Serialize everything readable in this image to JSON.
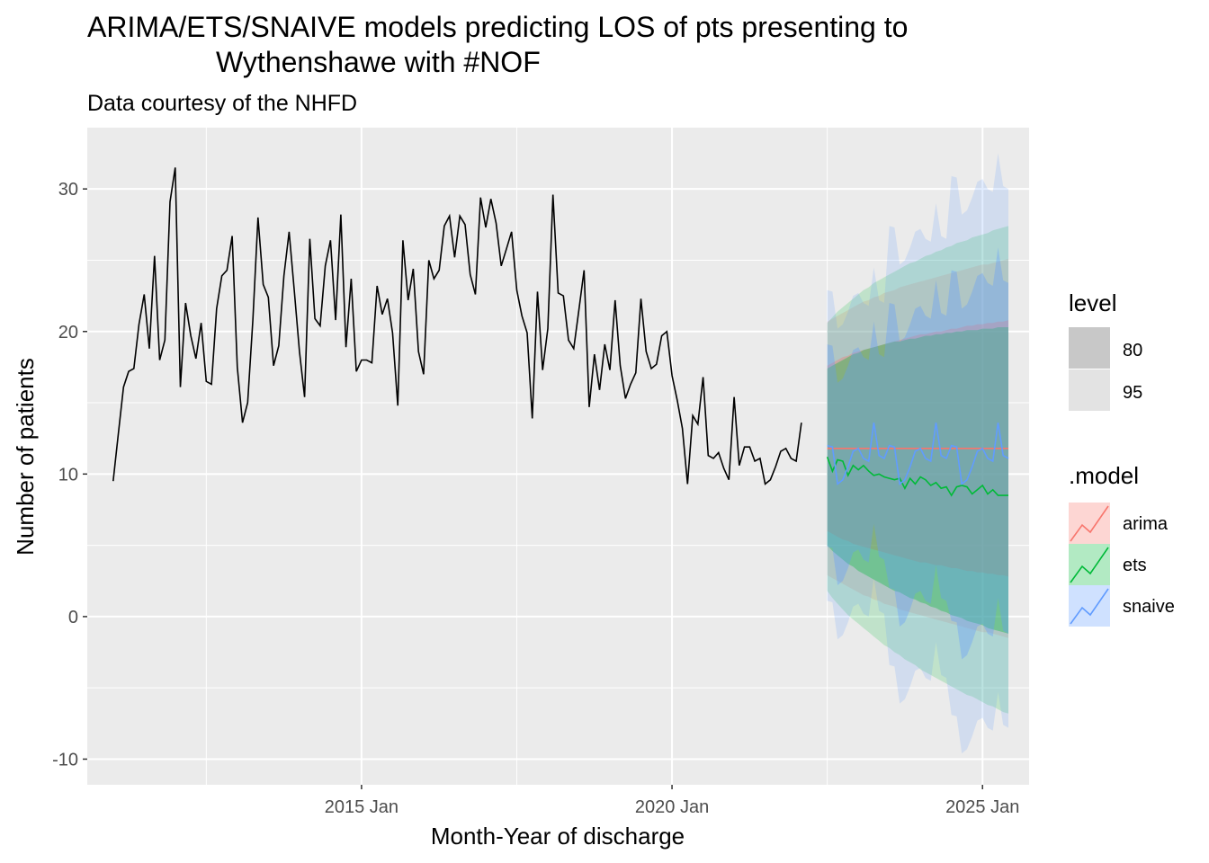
{
  "chart_data": {
    "type": "line",
    "title_line1": "ARIMA/ETS/SNAIVE models predicting LOS of pts presenting to",
    "title_line2": "Wythenshawe  with #NOF",
    "subtitle": "Data courtesy of the NHFD",
    "xlabel": "Month-Year of discharge",
    "ylabel": "Number of patients",
    "x_axis": {
      "type": "date",
      "range": [
        "2010-08",
        "2025-10"
      ],
      "ticks": [
        {
          "date": "2015-01",
          "label": "2015 Jan"
        },
        {
          "date": "2020-01",
          "label": "2020 Jan"
        },
        {
          "date": "2025-01",
          "label": "2025 Jan"
        }
      ],
      "minor_gridlines": [
        "2012-07",
        "2017-07",
        "2022-07"
      ]
    },
    "y_axis": {
      "range": [
        -11.8,
        34.3
      ],
      "ticks": [
        -10,
        0,
        10,
        20,
        30
      ],
      "minor_gridlines": [
        -5,
        5,
        15,
        25
      ]
    },
    "grid": true,
    "history": {
      "start": "2011-01",
      "color": "#000000",
      "values": [
        9.5,
        12.8,
        16.1,
        17.2,
        17.4,
        20.5,
        22.6,
        18.8,
        25.3,
        18.0,
        19.4,
        29.1,
        31.5,
        16.1,
        22.0,
        19.7,
        18.1,
        20.6,
        16.5,
        16.3,
        21.6,
        23.9,
        24.3,
        26.7,
        17.5,
        13.6,
        15.0,
        20.8,
        28.0,
        23.3,
        22.4,
        17.6,
        19.0,
        23.9,
        27.0,
        22.9,
        18.6,
        15.4,
        26.5,
        20.9,
        20.4,
        24.6,
        26.4,
        20.8,
        28.2,
        18.9,
        23.7,
        17.2,
        18.0,
        18.0,
        17.8,
        23.2,
        21.2,
        22.3,
        19.9,
        14.8,
        26.4,
        22.2,
        24.4,
        18.6,
        17.0,
        25.0,
        23.7,
        24.3,
        27.4,
        28.1,
        25.2,
        28.1,
        27.5,
        24.0,
        22.6,
        29.4,
        27.3,
        29.3,
        27.6,
        24.6,
        25.8,
        27.0,
        22.9,
        21.1,
        19.9,
        13.9,
        22.8,
        17.3,
        20.2,
        29.6,
        22.7,
        22.5,
        19.4,
        18.8,
        21.5,
        24.3,
        14.7,
        18.4,
        15.9,
        19.1,
        17.3,
        22.2,
        17.6,
        15.3,
        16.3,
        17.1,
        22.3,
        18.6,
        17.4,
        17.7,
        19.7,
        20.0,
        16.9,
        15.2,
        13.2,
        9.3,
        14.1,
        13.5,
        16.8,
        11.3,
        11.1,
        11.5,
        10.4,
        9.6,
        15.4,
        10.6,
        11.9,
        11.9,
        10.9,
        11.1,
        9.3,
        9.6,
        10.5,
        11.6,
        11.8,
        11.1,
        10.9,
        13.6
      ]
    },
    "forecast_start": "2022-07",
    "forecast_horizon_months": 36,
    "series": [
      {
        "name": "arima",
        "color": "#f8766d",
        "mean": [
          11.8,
          11.8,
          11.8,
          11.8,
          11.8,
          11.8,
          11.8,
          11.8,
          11.8,
          11.8,
          11.8,
          11.8,
          11.8,
          11.8,
          11.8,
          11.8,
          11.8,
          11.8,
          11.8,
          11.8,
          11.8,
          11.8,
          11.8,
          11.8,
          11.8,
          11.8,
          11.8,
          11.8,
          11.8,
          11.8,
          11.8,
          11.8,
          11.8,
          11.8,
          11.8,
          11.8
        ],
        "lo80": [
          6.0,
          5.8,
          5.6,
          5.4,
          5.3,
          5.1,
          5.0,
          4.9,
          4.8,
          4.7,
          4.6,
          4.5,
          4.4,
          4.3,
          4.2,
          4.1,
          4.0,
          3.9,
          3.8,
          3.8,
          3.7,
          3.6,
          3.6,
          3.5,
          3.4,
          3.4,
          3.3,
          3.2,
          3.2,
          3.1,
          3.1,
          3.0,
          3.0,
          2.9,
          2.9,
          2.8
        ],
        "hi80": [
          17.6,
          17.8,
          18.0,
          18.2,
          18.3,
          18.5,
          18.6,
          18.7,
          18.8,
          18.9,
          19.0,
          19.1,
          19.2,
          19.3,
          19.4,
          19.5,
          19.6,
          19.7,
          19.8,
          19.8,
          19.9,
          20.0,
          20.0,
          20.1,
          20.2,
          20.2,
          20.3,
          20.4,
          20.4,
          20.5,
          20.5,
          20.6,
          20.6,
          20.7,
          20.7,
          20.8
        ],
        "lo95": [
          2.9,
          2.7,
          2.5,
          2.3,
          2.1,
          1.9,
          1.7,
          1.5,
          1.4,
          1.2,
          1.1,
          0.9,
          0.8,
          0.7,
          0.5,
          0.4,
          0.3,
          0.2,
          0.1,
          0.0,
          -0.1,
          -0.2,
          -0.3,
          -0.4,
          -0.5,
          -0.6,
          -0.7,
          -0.8,
          -0.9,
          -1.0,
          -1.1,
          -1.1,
          -1.2,
          -1.3,
          -1.4,
          -1.5
        ],
        "hi95": [
          20.7,
          20.9,
          21.1,
          21.3,
          21.5,
          21.7,
          21.9,
          22.1,
          22.2,
          22.4,
          22.5,
          22.7,
          22.8,
          22.9,
          23.1,
          23.2,
          23.3,
          23.4,
          23.5,
          23.6,
          23.7,
          23.8,
          23.9,
          24.0,
          24.1,
          24.2,
          24.3,
          24.4,
          24.5,
          24.6,
          24.7,
          24.7,
          24.8,
          24.9,
          25.0,
          25.1
        ]
      },
      {
        "name": "ets",
        "color": "#00ba38",
        "mean": [
          11.2,
          10.2,
          11.0,
          10.9,
          9.9,
          10.6,
          10.3,
          10.6,
          10.2,
          9.9,
          10.0,
          9.8,
          9.7,
          9.6,
          9.7,
          9.0,
          9.7,
          9.3,
          9.8,
          9.6,
          9.2,
          9.4,
          9.0,
          9.1,
          8.5,
          9.1,
          9.2,
          9.1,
          8.6,
          8.9,
          9.2,
          8.6,
          8.9,
          8.5,
          8.5,
          8.5
        ],
        "lo80": [
          5.0,
          4.6,
          4.3,
          4.0,
          3.7,
          3.5,
          3.2,
          3.0,
          2.8,
          2.6,
          2.4,
          2.2,
          2.0,
          1.8,
          1.7,
          1.5,
          1.3,
          1.2,
          1.0,
          0.9,
          0.7,
          0.6,
          0.4,
          0.3,
          0.1,
          0.0,
          -0.1,
          -0.3,
          -0.4,
          -0.5,
          -0.6,
          -0.8,
          -0.9,
          -1.0,
          -1.1,
          -1.2
        ],
        "hi80": [
          17.4,
          17.6,
          17.8,
          18.0,
          18.2,
          18.4,
          18.5,
          18.7,
          18.8,
          18.9,
          19.0,
          19.1,
          19.2,
          19.3,
          19.3,
          19.4,
          19.5,
          19.5,
          19.6,
          19.7,
          19.7,
          19.8,
          19.8,
          19.9,
          19.9,
          20.0,
          20.0,
          20.1,
          20.1,
          20.1,
          20.2,
          20.2,
          20.2,
          20.3,
          20.3,
          20.3
        ],
        "lo95": [
          1.8,
          1.3,
          0.9,
          0.5,
          0.1,
          -0.2,
          -0.5,
          -0.8,
          -1.1,
          -1.4,
          -1.7,
          -2.0,
          -2.2,
          -2.5,
          -2.7,
          -3.0,
          -3.2,
          -3.4,
          -3.7,
          -3.9,
          -4.1,
          -4.3,
          -4.5,
          -4.7,
          -4.9,
          -5.1,
          -5.3,
          -5.5,
          -5.6,
          -5.8,
          -6.0,
          -6.2,
          -6.3,
          -6.5,
          -6.7,
          -6.8
        ],
        "hi95": [
          20.6,
          21.0,
          21.4,
          21.7,
          22.0,
          22.3,
          22.6,
          22.9,
          23.1,
          23.4,
          23.6,
          23.8,
          24.0,
          24.2,
          24.4,
          24.6,
          24.8,
          24.9,
          25.1,
          25.3,
          25.4,
          25.6,
          25.7,
          25.9,
          26.0,
          26.2,
          26.3,
          26.4,
          26.6,
          26.7,
          26.8,
          26.9,
          27.1,
          27.2,
          27.3,
          27.4
        ]
      },
      {
        "name": "snaive",
        "color": "#619cff",
        "mean": [
          12.0,
          11.9,
          9.3,
          9.6,
          10.5,
          11.6,
          11.8,
          11.1,
          10.9,
          13.6,
          11.3,
          11.1,
          12.0,
          11.9,
          9.3,
          9.6,
          10.5,
          11.6,
          11.8,
          11.1,
          10.9,
          13.6,
          11.3,
          11.1,
          12.0,
          11.9,
          9.3,
          9.6,
          10.5,
          11.6,
          11.8,
          11.1,
          10.9,
          13.6,
          11.3,
          11.1
        ],
        "lo80": [
          4.9,
          4.8,
          2.2,
          2.5,
          3.4,
          4.5,
          4.7,
          4.0,
          3.8,
          6.5,
          4.2,
          4.0,
          2.0,
          1.9,
          -0.7,
          -0.4,
          0.5,
          1.6,
          1.8,
          1.1,
          0.9,
          3.6,
          1.3,
          1.1,
          -0.3,
          -0.4,
          -3.0,
          -2.7,
          -1.8,
          -0.7,
          -0.5,
          -1.2,
          -1.4,
          1.3,
          -1.0,
          -1.2
        ],
        "hi80": [
          19.1,
          19.0,
          16.4,
          16.7,
          17.6,
          18.7,
          18.9,
          18.2,
          18.0,
          20.7,
          18.4,
          18.2,
          22.0,
          21.9,
          19.3,
          19.6,
          20.5,
          21.6,
          21.8,
          21.1,
          20.9,
          23.6,
          21.3,
          21.1,
          24.3,
          24.2,
          21.6,
          21.9,
          22.8,
          23.9,
          24.1,
          23.4,
          23.2,
          25.9,
          23.6,
          23.4
        ],
        "lo95": [
          1.1,
          1.0,
          -1.6,
          -1.3,
          -0.4,
          0.7,
          0.9,
          0.2,
          0.0,
          2.7,
          0.4,
          0.2,
          -3.4,
          -3.5,
          -6.1,
          -5.8,
          -4.9,
          -3.8,
          -3.6,
          -4.3,
          -4.5,
          -1.8,
          -4.1,
          -4.3,
          -6.9,
          -7.0,
          -9.6,
          -9.3,
          -8.4,
          -7.3,
          -7.1,
          -7.8,
          -8.0,
          -5.3,
          -7.6,
          -7.8
        ],
        "hi95": [
          22.9,
          22.8,
          20.2,
          20.5,
          21.4,
          22.5,
          22.7,
          22.0,
          21.8,
          24.5,
          22.2,
          22.0,
          27.4,
          27.3,
          24.7,
          25.0,
          25.9,
          27.0,
          27.2,
          26.5,
          26.3,
          29.0,
          26.7,
          26.5,
          30.9,
          30.8,
          28.2,
          28.5,
          29.4,
          30.5,
          30.7,
          30.0,
          29.8,
          32.5,
          30.2,
          30.0
        ]
      }
    ],
    "legend": {
      "placement": "right",
      "level_title": "level",
      "levels": [
        "80",
        "95"
      ],
      "model_title": ".model",
      "models": [
        "arima",
        "ets",
        "snaive"
      ]
    }
  }
}
